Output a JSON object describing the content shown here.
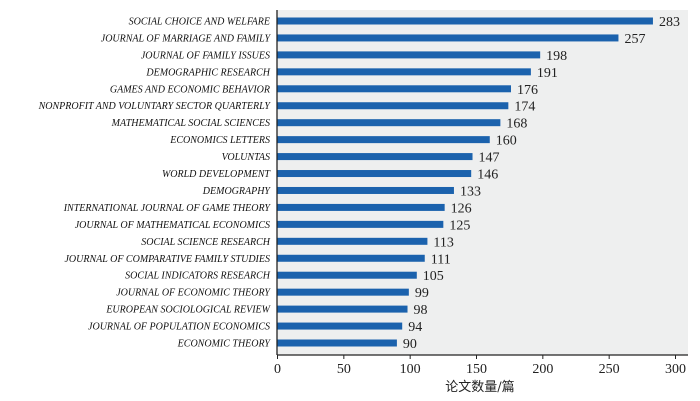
{
  "chart_data": {
    "type": "bar",
    "orientation": "horizontal",
    "categories": [
      "SOCIAL CHOICE AND WELFARE",
      "JOURNAL OF MARRIAGE AND FAMILY",
      "JOURNAL OF FAMILY ISSUES",
      "DEMOGRAPHIC RESEARCH",
      "GAMES AND ECONOMIC BEHAVIOR",
      "NONPROFIT AND VOLUNTARY SECTOR QUARTERLY",
      "MATHEMATICAL SOCIAL SCIENCES",
      "ECONOMICS LETTERS",
      "VOLUNTAS",
      "WORLD DEVELOPMENT",
      "DEMOGRAPHY",
      "INTERNATIONAL JOURNAL OF GAME THEORY",
      "JOURNAL OF MATHEMATICAL ECONOMICS",
      "SOCIAL SCIENCE RESEARCH",
      "JOURNAL OF COMPARATIVE FAMILY STUDIES",
      "SOCIAL INDICATORS RESEARCH",
      "JOURNAL OF ECONOMIC THEORY",
      "EUROPEAN SOCIOLOGICAL REVIEW",
      "JOURNAL OF POPULATION ECONOMICS",
      "ECONOMIC THEORY"
    ],
    "values": [
      283,
      257,
      198,
      191,
      176,
      174,
      168,
      160,
      147,
      146,
      133,
      126,
      125,
      113,
      111,
      105,
      99,
      98,
      94,
      90
    ],
    "xlabel": "论文数量/篇",
    "ylabel": "",
    "xlim": [
      0,
      300
    ],
    "xticks": [
      "0",
      "50",
      "100",
      "150",
      "200",
      "250",
      "300"
    ],
    "grid": false,
    "bar_color": "#1b62ad",
    "background_color": "#eeefef"
  }
}
